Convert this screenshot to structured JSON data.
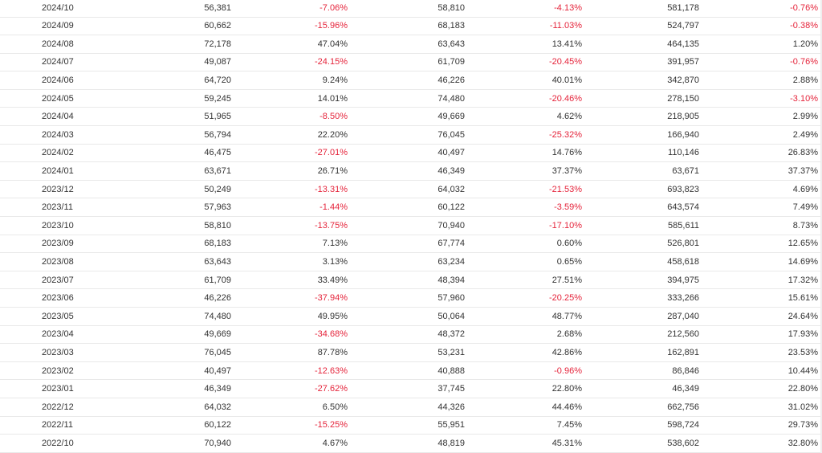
{
  "colors": {
    "negative": "#e5243b",
    "text": "#333333",
    "divider": "#e9e9e9"
  },
  "rows": [
    {
      "date": "2024/10",
      "v1": "56,381",
      "p1": "-7.06%",
      "v2": "58,810",
      "p2": "-4.13%",
      "v3": "581,178",
      "p3": "-0.76%"
    },
    {
      "date": "2024/09",
      "v1": "60,662",
      "p1": "-15.96%",
      "v2": "68,183",
      "p2": "-11.03%",
      "v3": "524,797",
      "p3": "-0.38%"
    },
    {
      "date": "2024/08",
      "v1": "72,178",
      "p1": "47.04%",
      "v2": "63,643",
      "p2": "13.41%",
      "v3": "464,135",
      "p3": "1.20%"
    },
    {
      "date": "2024/07",
      "v1": "49,087",
      "p1": "-24.15%",
      "v2": "61,709",
      "p2": "-20.45%",
      "v3": "391,957",
      "p3": "-0.76%"
    },
    {
      "date": "2024/06",
      "v1": "64,720",
      "p1": "9.24%",
      "v2": "46,226",
      "p2": "40.01%",
      "v3": "342,870",
      "p3": "2.88%"
    },
    {
      "date": "2024/05",
      "v1": "59,245",
      "p1": "14.01%",
      "v2": "74,480",
      "p2": "-20.46%",
      "v3": "278,150",
      "p3": "-3.10%"
    },
    {
      "date": "2024/04",
      "v1": "51,965",
      "p1": "-8.50%",
      "v2": "49,669",
      "p2": "4.62%",
      "v3": "218,905",
      "p3": "2.99%"
    },
    {
      "date": "2024/03",
      "v1": "56,794",
      "p1": "22.20%",
      "v2": "76,045",
      "p2": "-25.32%",
      "v3": "166,940",
      "p3": "2.49%"
    },
    {
      "date": "2024/02",
      "v1": "46,475",
      "p1": "-27.01%",
      "v2": "40,497",
      "p2": "14.76%",
      "v3": "110,146",
      "p3": "26.83%"
    },
    {
      "date": "2024/01",
      "v1": "63,671",
      "p1": "26.71%",
      "v2": "46,349",
      "p2": "37.37%",
      "v3": "63,671",
      "p3": "37.37%"
    },
    {
      "date": "2023/12",
      "v1": "50,249",
      "p1": "-13.31%",
      "v2": "64,032",
      "p2": "-21.53%",
      "v3": "693,823",
      "p3": "4.69%"
    },
    {
      "date": "2023/11",
      "v1": "57,963",
      "p1": "-1.44%",
      "v2": "60,122",
      "p2": "-3.59%",
      "v3": "643,574",
      "p3": "7.49%"
    },
    {
      "date": "2023/10",
      "v1": "58,810",
      "p1": "-13.75%",
      "v2": "70,940",
      "p2": "-17.10%",
      "v3": "585,611",
      "p3": "8.73%"
    },
    {
      "date": "2023/09",
      "v1": "68,183",
      "p1": "7.13%",
      "v2": "67,774",
      "p2": "0.60%",
      "v3": "526,801",
      "p3": "12.65%"
    },
    {
      "date": "2023/08",
      "v1": "63,643",
      "p1": "3.13%",
      "v2": "63,234",
      "p2": "0.65%",
      "v3": "458,618",
      "p3": "14.69%"
    },
    {
      "date": "2023/07",
      "v1": "61,709",
      "p1": "33.49%",
      "v2": "48,394",
      "p2": "27.51%",
      "v3": "394,975",
      "p3": "17.32%"
    },
    {
      "date": "2023/06",
      "v1": "46,226",
      "p1": "-37.94%",
      "v2": "57,960",
      "p2": "-20.25%",
      "v3": "333,266",
      "p3": "15.61%"
    },
    {
      "date": "2023/05",
      "v1": "74,480",
      "p1": "49.95%",
      "v2": "50,064",
      "p2": "48.77%",
      "v3": "287,040",
      "p3": "24.64%"
    },
    {
      "date": "2023/04",
      "v1": "49,669",
      "p1": "-34.68%",
      "v2": "48,372",
      "p2": "2.68%",
      "v3": "212,560",
      "p3": "17.93%"
    },
    {
      "date": "2023/03",
      "v1": "76,045",
      "p1": "87.78%",
      "v2": "53,231",
      "p2": "42.86%",
      "v3": "162,891",
      "p3": "23.53%"
    },
    {
      "date": "2023/02",
      "v1": "40,497",
      "p1": "-12.63%",
      "v2": "40,888",
      "p2": "-0.96%",
      "v3": "86,846",
      "p3": "10.44%"
    },
    {
      "date": "2023/01",
      "v1": "46,349",
      "p1": "-27.62%",
      "v2": "37,745",
      "p2": "22.80%",
      "v3": "46,349",
      "p3": "22.80%"
    },
    {
      "date": "2022/12",
      "v1": "64,032",
      "p1": "6.50%",
      "v2": "44,326",
      "p2": "44.46%",
      "v3": "662,756",
      "p3": "31.02%"
    },
    {
      "date": "2022/11",
      "v1": "60,122",
      "p1": "-15.25%",
      "v2": "55,951",
      "p2": "7.45%",
      "v3": "598,724",
      "p3": "29.73%"
    },
    {
      "date": "2022/10",
      "v1": "70,940",
      "p1": "4.67%",
      "v2": "48,819",
      "p2": "45.31%",
      "v3": "538,602",
      "p3": "32.80%"
    }
  ]
}
